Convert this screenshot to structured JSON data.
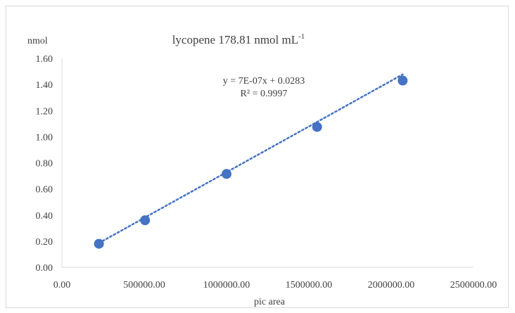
{
  "chart_data": {
    "type": "scatter",
    "title": "lycopene 178.81 nmol mL",
    "title_superscript": "-1",
    "xlabel": "pic area",
    "ylabel": "nmol",
    "xlim": [
      0,
      2500000
    ],
    "ylim": [
      0,
      1.6
    ],
    "x_ticks": [
      "0.00",
      "500000.00",
      "1000000.00",
      "1500000.00",
      "2000000.00",
      "2500000.00"
    ],
    "y_ticks": [
      "0.00",
      "0.20",
      "0.40",
      "0.60",
      "0.80",
      "1.00",
      "1.20",
      "1.40",
      "1.60"
    ],
    "grid": false,
    "series": [
      {
        "x": [
          225000,
          505000,
          1000000,
          1550000,
          2070000
        ],
        "y": [
          0.18,
          0.36,
          0.715,
          1.075,
          1.43
        ],
        "color": "#4472c4"
      }
    ],
    "trendline": {
      "type": "linear",
      "style": "dotted",
      "slope": 7e-07,
      "intercept": 0.0283,
      "x_range": [
        225000,
        2070000
      ],
      "equation": "y = 7E-07x + 0.0283",
      "r_squared": "R² = 0.9997"
    }
  }
}
